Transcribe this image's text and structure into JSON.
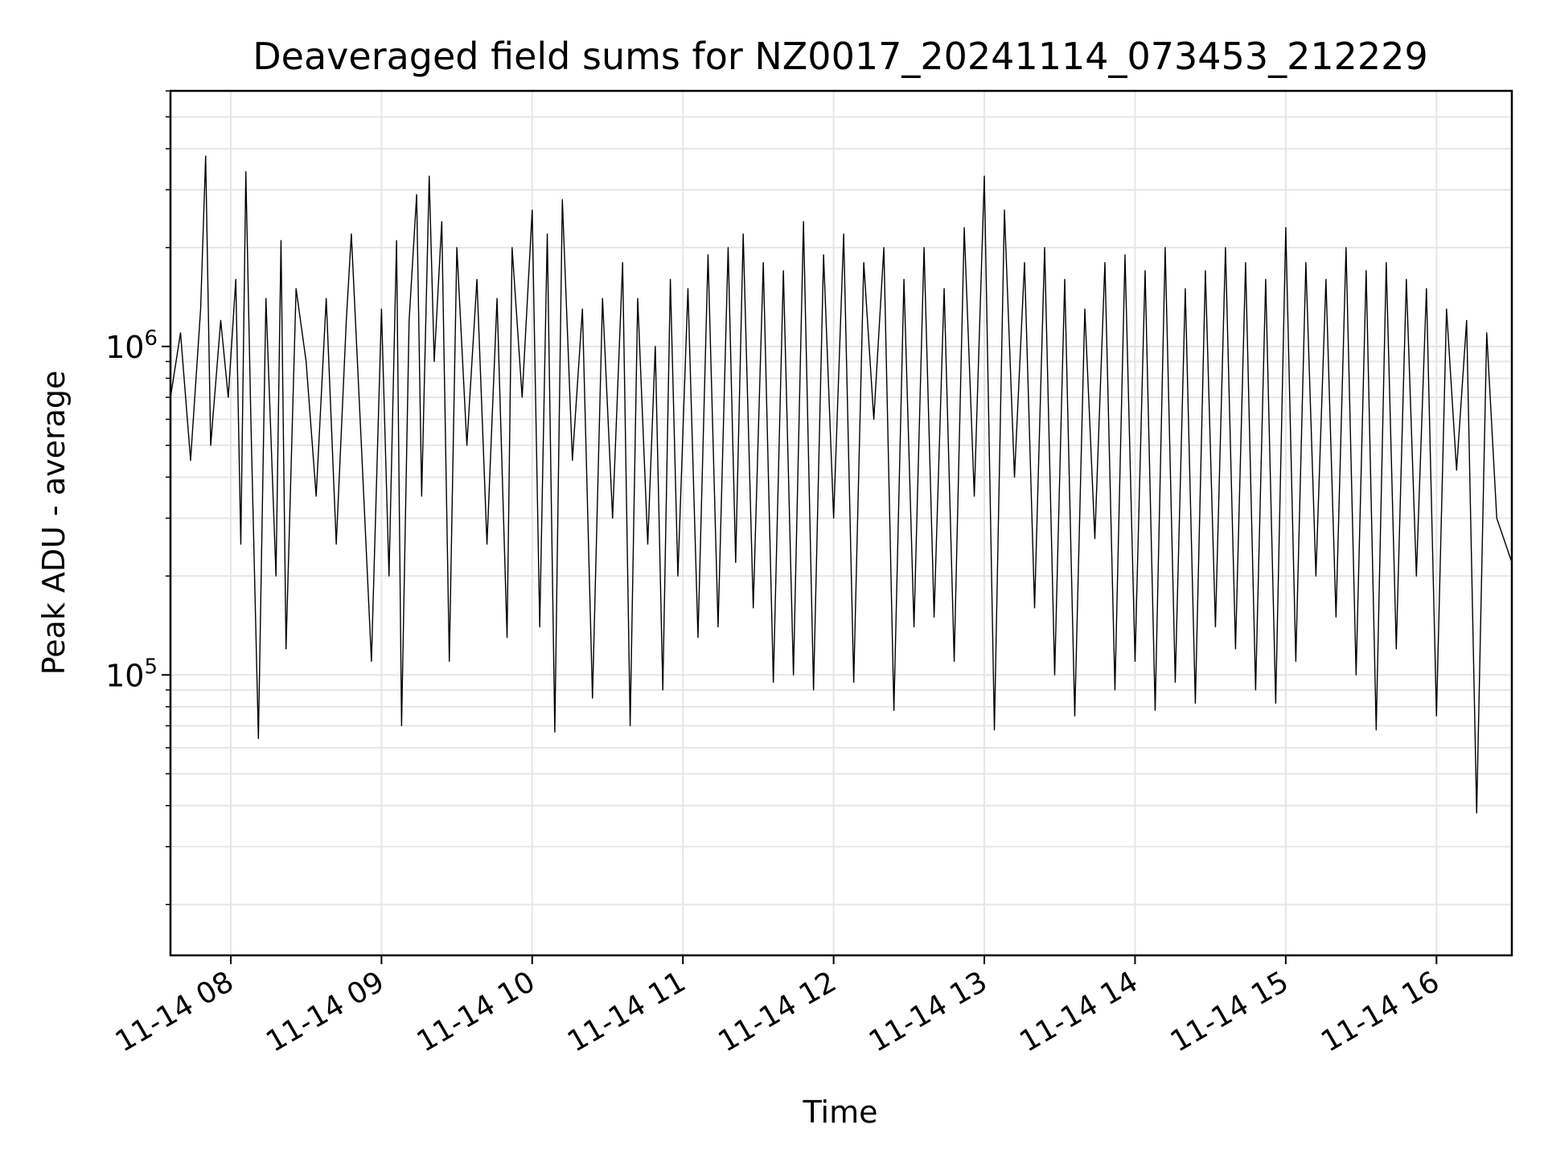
{
  "chart_data": {
    "type": "line",
    "title": "Deaveraged field sums for NZ0017_20241114_073453_212229",
    "xlabel": "Time",
    "ylabel": "Peak ADU - average",
    "x_start": "2024-11-14T07:35:00",
    "x_end": "2024-11-14T16:30:00",
    "xlim": [
      "2024-11-14T07:36",
      "2024-11-14T16:30"
    ],
    "ylim": [
      14000,
      6000000
    ],
    "yscale": "log",
    "grid": true,
    "x_ticks": [
      {
        "label": "11-14 08",
        "time": "2024-11-14T08:00"
      },
      {
        "label": "11-14 09",
        "time": "2024-11-14T09:00"
      },
      {
        "label": "11-14 10",
        "time": "2024-11-14T10:00"
      },
      {
        "label": "11-14 11",
        "time": "2024-11-14T11:00"
      },
      {
        "label": "11-14 12",
        "time": "2024-11-14T12:00"
      },
      {
        "label": "11-14 13",
        "time": "2024-11-14T13:00"
      },
      {
        "label": "11-14 14",
        "time": "2024-11-14T14:00"
      },
      {
        "label": "11-14 15",
        "time": "2024-11-14T15:00"
      },
      {
        "label": "11-14 16",
        "time": "2024-11-14T16:00"
      }
    ],
    "y_ticks": [
      {
        "base": "10",
        "exp": "5",
        "value": 100000
      },
      {
        "base": "10",
        "exp": "6",
        "value": 1000000
      }
    ],
    "series": [
      {
        "color": "#000000",
        "points": [
          [
            "07:36",
            700000
          ],
          [
            "07:40",
            1100000
          ],
          [
            "07:44",
            450000
          ],
          [
            "07:48",
            1300000
          ],
          [
            "07:50",
            3800000
          ],
          [
            "07:52",
            500000
          ],
          [
            "07:56",
            1200000
          ],
          [
            "07:59",
            700000
          ],
          [
            "08:02",
            1600000
          ],
          [
            "08:04",
            250000
          ],
          [
            "08:06",
            3400000
          ],
          [
            "08:08",
            600000
          ],
          [
            "08:11",
            64000
          ],
          [
            "08:14",
            1400000
          ],
          [
            "08:18",
            200000
          ],
          [
            "08:20",
            2100000
          ],
          [
            "08:22",
            120000
          ],
          [
            "08:26",
            1500000
          ],
          [
            "08:30",
            900000
          ],
          [
            "08:34",
            350000
          ],
          [
            "08:38",
            1400000
          ],
          [
            "08:42",
            250000
          ],
          [
            "08:46",
            1200000
          ],
          [
            "08:48",
            2200000
          ],
          [
            "08:52",
            500000
          ],
          [
            "08:56",
            110000
          ],
          [
            "09:00",
            1300000
          ],
          [
            "09:03",
            200000
          ],
          [
            "09:06",
            2100000
          ],
          [
            "09:08",
            70000
          ],
          [
            "09:11",
            1200000
          ],
          [
            "09:14",
            2900000
          ],
          [
            "09:16",
            350000
          ],
          [
            "09:19",
            3300000
          ],
          [
            "09:21",
            900000
          ],
          [
            "09:24",
            2400000
          ],
          [
            "09:27",
            110000
          ],
          [
            "09:30",
            2000000
          ],
          [
            "09:34",
            500000
          ],
          [
            "09:38",
            1600000
          ],
          [
            "09:42",
            250000
          ],
          [
            "09:46",
            1400000
          ],
          [
            "09:50",
            130000
          ],
          [
            "09:52",
            2000000
          ],
          [
            "09:56",
            700000
          ],
          [
            "10:00",
            2600000
          ],
          [
            "10:03",
            140000
          ],
          [
            "10:06",
            2200000
          ],
          [
            "10:09",
            67000
          ],
          [
            "10:12",
            2800000
          ],
          [
            "10:16",
            450000
          ],
          [
            "10:20",
            1300000
          ],
          [
            "10:24",
            85000
          ],
          [
            "10:28",
            1400000
          ],
          [
            "10:32",
            300000
          ],
          [
            "10:36",
            1800000
          ],
          [
            "10:39",
            70000
          ],
          [
            "10:42",
            1400000
          ],
          [
            "10:46",
            250000
          ],
          [
            "10:49",
            1000000
          ],
          [
            "10:52",
            90000
          ],
          [
            "10:55",
            1600000
          ],
          [
            "10:58",
            200000
          ],
          [
            "11:02",
            1500000
          ],
          [
            "11:06",
            130000
          ],
          [
            "11:10",
            1900000
          ],
          [
            "11:14",
            140000
          ],
          [
            "11:18",
            2000000
          ],
          [
            "11:21",
            220000
          ],
          [
            "11:24",
            2200000
          ],
          [
            "11:28",
            160000
          ],
          [
            "11:32",
            1800000
          ],
          [
            "11:36",
            95000
          ],
          [
            "11:40",
            1700000
          ],
          [
            "11:44",
            100000
          ],
          [
            "11:48",
            2400000
          ],
          [
            "11:52",
            90000
          ],
          [
            "11:56",
            1900000
          ],
          [
            "12:00",
            300000
          ],
          [
            "12:04",
            2200000
          ],
          [
            "12:08",
            95000
          ],
          [
            "12:12",
            1800000
          ],
          [
            "12:16",
            600000
          ],
          [
            "12:20",
            2000000
          ],
          [
            "12:24",
            78000
          ],
          [
            "12:28",
            1600000
          ],
          [
            "12:32",
            140000
          ],
          [
            "12:36",
            2000000
          ],
          [
            "12:40",
            150000
          ],
          [
            "12:44",
            1500000
          ],
          [
            "12:48",
            110000
          ],
          [
            "12:52",
            2300000
          ],
          [
            "12:56",
            350000
          ],
          [
            "13:00",
            3300000
          ],
          [
            "13:04",
            68000
          ],
          [
            "13:08",
            2600000
          ],
          [
            "13:12",
            400000
          ],
          [
            "13:16",
            1800000
          ],
          [
            "13:20",
            160000
          ],
          [
            "13:24",
            2000000
          ],
          [
            "13:28",
            100000
          ],
          [
            "13:32",
            1600000
          ],
          [
            "13:36",
            75000
          ],
          [
            "13:40",
            1300000
          ],
          [
            "13:44",
            260000
          ],
          [
            "13:48",
            1800000
          ],
          [
            "13:52",
            90000
          ],
          [
            "13:56",
            1900000
          ],
          [
            "14:00",
            110000
          ],
          [
            "14:04",
            1700000
          ],
          [
            "14:08",
            78000
          ],
          [
            "14:12",
            2000000
          ],
          [
            "14:16",
            95000
          ],
          [
            "14:20",
            1500000
          ],
          [
            "14:24",
            82000
          ],
          [
            "14:28",
            1700000
          ],
          [
            "14:32",
            140000
          ],
          [
            "14:36",
            2000000
          ],
          [
            "14:40",
            120000
          ],
          [
            "14:44",
            1800000
          ],
          [
            "14:48",
            90000
          ],
          [
            "14:52",
            1600000
          ],
          [
            "14:56",
            82000
          ],
          [
            "15:00",
            2300000
          ],
          [
            "15:04",
            110000
          ],
          [
            "15:08",
            1800000
          ],
          [
            "15:12",
            200000
          ],
          [
            "15:16",
            1600000
          ],
          [
            "15:20",
            150000
          ],
          [
            "15:24",
            2000000
          ],
          [
            "15:28",
            100000
          ],
          [
            "15:32",
            1700000
          ],
          [
            "15:36",
            68000
          ],
          [
            "15:40",
            1800000
          ],
          [
            "15:44",
            120000
          ],
          [
            "15:48",
            1600000
          ],
          [
            "15:52",
            200000
          ],
          [
            "15:56",
            1500000
          ],
          [
            "16:00",
            75000
          ],
          [
            "16:04",
            1300000
          ],
          [
            "16:08",
            420000
          ],
          [
            "16:12",
            1200000
          ],
          [
            "16:16",
            38000
          ],
          [
            "16:20",
            1100000
          ],
          [
            "16:24",
            300000
          ],
          [
            "16:30",
            220000
          ]
        ]
      }
    ]
  }
}
